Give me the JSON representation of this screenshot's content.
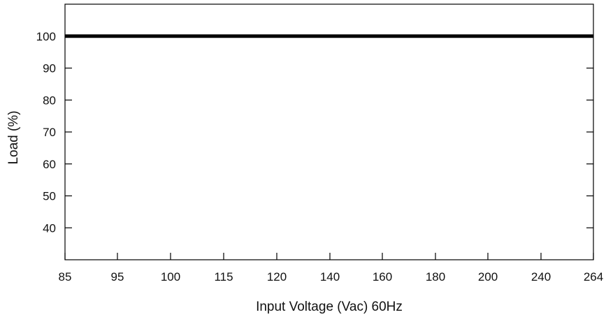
{
  "chart_data": {
    "type": "line",
    "title": "",
    "xlabel": "Input Voltage (Vac) 60Hz",
    "ylabel": "Load (%)",
    "x_scale": "categorical",
    "x_ticks": [
      "85",
      "95",
      "100",
      "115",
      "120",
      "140",
      "160",
      "180",
      "200",
      "240",
      "264"
    ],
    "y_ticks": [
      40,
      50,
      60,
      70,
      80,
      90,
      100
    ],
    "ylim": [
      30,
      110
    ],
    "grid": false,
    "legend": "none",
    "series": [
      {
        "x": [
          "85",
          "95",
          "100",
          "115",
          "120",
          "140",
          "160",
          "180",
          "200",
          "240",
          "264"
        ],
        "values": [
          100,
          100,
          100,
          100,
          100,
          100,
          100,
          100,
          100,
          100,
          100
        ],
        "color": "#000000"
      }
    ]
  }
}
